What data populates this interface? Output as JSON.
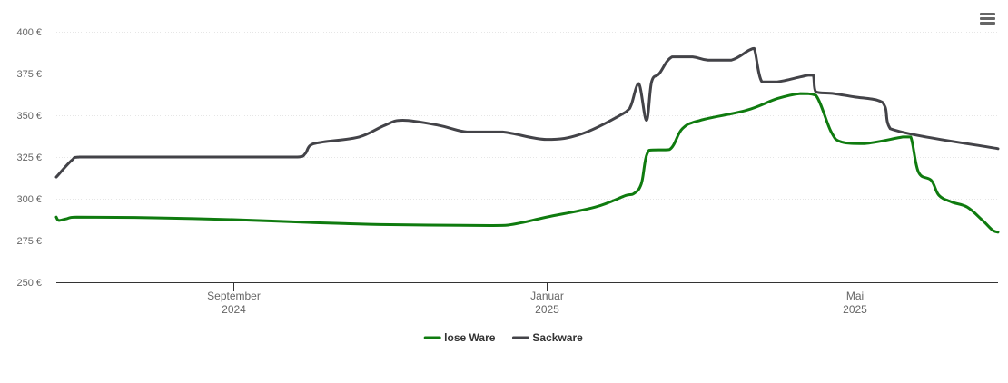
{
  "chart_data": {
    "type": "line",
    "ylim": [
      250,
      400
    ],
    "ytick_step": 25,
    "y_unit_suffix": " €",
    "x_range": [
      "2024-06-24",
      "2025-06-26"
    ],
    "x_ticks": [
      {
        "date": "2024-09-01",
        "label": "September",
        "year": "2024"
      },
      {
        "date": "2025-01-01",
        "label": "Januar",
        "year": "2025"
      },
      {
        "date": "2025-05-01",
        "label": "Mai",
        "year": "2025"
      }
    ],
    "grid": true,
    "legend_position": "bottom-center",
    "series": [
      {
        "name": "lose Ware",
        "color": "#0f7b0f",
        "points": [
          [
            "2024-06-24",
            289
          ],
          [
            "2024-06-25",
            287
          ],
          [
            "2024-06-28",
            288
          ],
          [
            "2024-07-02",
            289
          ],
          [
            "2024-08-01",
            288.6
          ],
          [
            "2024-09-01",
            287.5
          ],
          [
            "2024-10-01",
            285.8
          ],
          [
            "2024-11-01",
            284.5
          ],
          [
            "2024-12-10",
            284
          ],
          [
            "2024-12-20",
            285
          ],
          [
            "2025-01-01",
            289
          ],
          [
            "2025-01-20",
            295
          ],
          [
            "2025-02-01",
            302
          ],
          [
            "2025-02-04",
            303
          ],
          [
            "2025-02-07",
            309
          ],
          [
            "2025-02-10",
            329
          ],
          [
            "2025-02-18",
            329.5
          ],
          [
            "2025-02-23",
            342
          ],
          [
            "2025-03-02",
            347
          ],
          [
            "2025-03-20",
            353
          ],
          [
            "2025-04-01",
            360
          ],
          [
            "2025-04-10",
            363
          ],
          [
            "2025-04-16",
            362
          ],
          [
            "2025-04-22",
            340
          ],
          [
            "2025-04-26",
            334
          ],
          [
            "2025-05-05",
            333
          ],
          [
            "2025-05-20",
            337
          ],
          [
            "2025-05-23",
            337
          ],
          [
            "2025-05-26",
            316
          ],
          [
            "2025-05-31",
            311
          ],
          [
            "2025-06-03",
            302
          ],
          [
            "2025-06-08",
            298
          ],
          [
            "2025-06-14",
            295
          ],
          [
            "2025-06-20",
            287
          ],
          [
            "2025-06-24",
            281
          ],
          [
            "2025-06-26",
            280
          ]
        ]
      },
      {
        "name": "Sackware",
        "color": "#434348",
        "points": [
          [
            "2024-06-24",
            313
          ],
          [
            "2024-06-30",
            323
          ],
          [
            "2024-07-03",
            325
          ],
          [
            "2024-08-01",
            325
          ],
          [
            "2024-08-31",
            325
          ],
          [
            "2024-09-01",
            325
          ],
          [
            "2024-09-26",
            325
          ],
          [
            "2024-09-29",
            327
          ],
          [
            "2024-10-01",
            332
          ],
          [
            "2024-10-06",
            334
          ],
          [
            "2024-10-20",
            337
          ],
          [
            "2024-10-30",
            344
          ],
          [
            "2024-11-06",
            347
          ],
          [
            "2024-11-20",
            344
          ],
          [
            "2024-12-01",
            340
          ],
          [
            "2024-12-15",
            340
          ],
          [
            "2025-01-01",
            335.5
          ],
          [
            "2025-01-15",
            339
          ],
          [
            "2025-02-01",
            352
          ],
          [
            "2025-02-03",
            356
          ],
          [
            "2025-02-06",
            369
          ],
          [
            "2025-02-09",
            347
          ],
          [
            "2025-02-11",
            370
          ],
          [
            "2025-02-14",
            375
          ],
          [
            "2025-02-19",
            385
          ],
          [
            "2025-02-27",
            385
          ],
          [
            "2025-03-05",
            383
          ],
          [
            "2025-03-14",
            383
          ],
          [
            "2025-03-21",
            389
          ],
          [
            "2025-03-23",
            390
          ],
          [
            "2025-03-26",
            370
          ],
          [
            "2025-04-01",
            370
          ],
          [
            "2025-04-10",
            373
          ],
          [
            "2025-04-13",
            374
          ],
          [
            "2025-04-15",
            374
          ],
          [
            "2025-04-16",
            364
          ],
          [
            "2025-04-23",
            363
          ],
          [
            "2025-05-01",
            361
          ],
          [
            "2025-05-10",
            359
          ],
          [
            "2025-05-13",
            355
          ],
          [
            "2025-05-15",
            342
          ],
          [
            "2025-06-26",
            330
          ]
        ]
      }
    ]
  },
  "toolbar": {
    "menu_icon": "hamburger-menu-icon"
  }
}
